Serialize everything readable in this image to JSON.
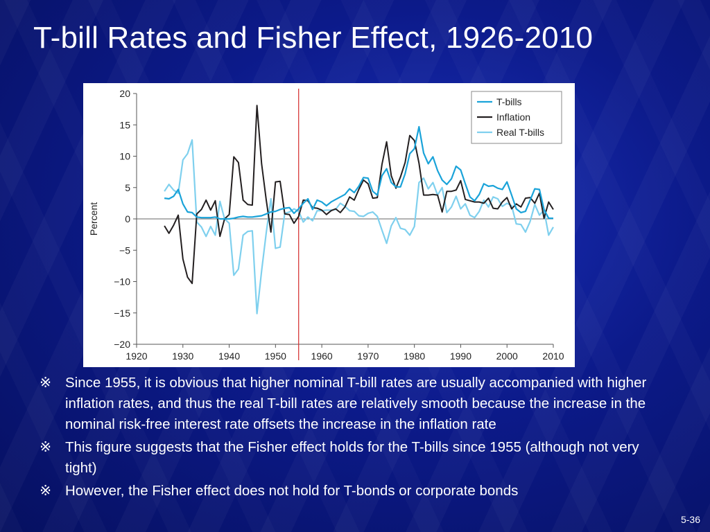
{
  "slide": {
    "title": "T-bill Rates and Fisher Effect, 1926-2010",
    "slide_number": "5-36",
    "bullet_marker": "※",
    "bullets": [
      "Since 1955, it is obvious that higher nominal T-bill rates are usually accompanied with higher inflation rates, and thus the real T-bill rates are relatively smooth because the increase in the nominal risk-free interest rate offsets the increase in the inflation rate",
      "This figure suggests that the Fisher effect holds for the T-bills since 1955 (although not very tight)",
      "However, the Fisher effect does not hold for T-bonds or corporate bonds"
    ],
    "colors": {
      "background": "#0c1a8a",
      "tbills": "#1aa3d9",
      "inflation": "#231f20",
      "real_tbills": "#7fd0ee",
      "marker_line": "#d42a2a"
    }
  },
  "chart_data": {
    "type": "line",
    "title": "",
    "xlabel": "",
    "ylabel": "Percent",
    "xlim": [
      1920,
      2010
    ],
    "ylim": [
      -20,
      20
    ],
    "xticks": [
      1920,
      1930,
      1940,
      1950,
      1960,
      1970,
      1980,
      1990,
      2000,
      2010
    ],
    "yticks": [
      -20,
      -15,
      -10,
      -5,
      0,
      5,
      10,
      15,
      20
    ],
    "ytick_labels": [
      "−20",
      "−15",
      "−10",
      "−5",
      "0",
      "5",
      "10",
      "15",
      "20"
    ],
    "reference_line_x": 1955,
    "legend_position": "top-right",
    "x": [
      1926,
      1927,
      1928,
      1929,
      1930,
      1931,
      1932,
      1933,
      1934,
      1935,
      1936,
      1937,
      1938,
      1939,
      1940,
      1941,
      1942,
      1943,
      1944,
      1945,
      1946,
      1947,
      1948,
      1949,
      1950,
      1951,
      1952,
      1953,
      1954,
      1955,
      1956,
      1957,
      1958,
      1959,
      1960,
      1961,
      1962,
      1963,
      1964,
      1965,
      1966,
      1967,
      1968,
      1969,
      1970,
      1971,
      1972,
      1973,
      1974,
      1975,
      1976,
      1977,
      1978,
      1979,
      1980,
      1981,
      1982,
      1983,
      1984,
      1985,
      1986,
      1987,
      1988,
      1989,
      1990,
      1991,
      1992,
      1993,
      1994,
      1995,
      1996,
      1997,
      1998,
      1999,
      2000,
      2001,
      2002,
      2003,
      2004,
      2005,
      2006,
      2007,
      2008,
      2009,
      2010
    ],
    "series": [
      {
        "name": "T-bills",
        "values": [
          3.3,
          3.2,
          3.6,
          4.7,
          2.4,
          1.1,
          1.0,
          0.3,
          0.2,
          0.2,
          0.2,
          0.3,
          0.0,
          0.0,
          0.0,
          0.1,
          0.3,
          0.4,
          0.3,
          0.3,
          0.4,
          0.5,
          0.8,
          1.1,
          1.2,
          1.5,
          1.7,
          1.8,
          0.9,
          1.6,
          2.5,
          3.2,
          1.5,
          3.0,
          2.7,
          2.1,
          2.7,
          3.1,
          3.5,
          3.9,
          4.8,
          4.2,
          5.2,
          6.6,
          6.5,
          4.4,
          3.8,
          6.9,
          8.0,
          5.8,
          5.1,
          5.1,
          7.2,
          10.4,
          11.2,
          14.7,
          10.5,
          8.8,
          9.9,
          7.7,
          6.2,
          5.5,
          6.4,
          8.4,
          7.8,
          5.6,
          3.5,
          2.9,
          3.9,
          5.6,
          5.2,
          5.3,
          4.9,
          4.7,
          5.9,
          3.8,
          1.6,
          1.0,
          1.2,
          3.0,
          4.8,
          4.7,
          1.5,
          0.1,
          0.1
        ]
      },
      {
        "name": "Inflation",
        "values": [
          -1.1,
          -2.3,
          -1.0,
          0.6,
          -6.4,
          -9.3,
          -10.3,
          0.8,
          1.5,
          3.0,
          1.4,
          2.9,
          -2.8,
          0.0,
          0.7,
          9.9,
          9.0,
          3.0,
          2.3,
          2.2,
          18.1,
          8.8,
          3.0,
          -2.1,
          5.9,
          6.0,
          0.8,
          0.7,
          -0.7,
          0.4,
          3.0,
          2.9,
          1.8,
          1.7,
          1.4,
          0.7,
          1.3,
          1.6,
          1.0,
          1.9,
          3.5,
          3.0,
          4.7,
          6.2,
          5.6,
          3.3,
          3.4,
          8.7,
          12.3,
          6.9,
          4.9,
          6.7,
          9.0,
          13.3,
          12.5,
          8.9,
          3.8,
          3.8,
          3.9,
          3.8,
          1.1,
          4.4,
          4.4,
          4.6,
          6.1,
          3.1,
          2.9,
          2.7,
          2.7,
          2.5,
          3.3,
          1.7,
          1.6,
          2.7,
          3.4,
          1.6,
          2.4,
          1.9,
          3.3,
          3.4,
          2.5,
          4.1,
          0.1,
          2.7,
          1.5
        ]
      },
      {
        "name": "Real T-bills",
        "values": [
          4.4,
          5.5,
          4.6,
          4.1,
          9.4,
          10.4,
          12.6,
          -0.5,
          -1.3,
          -2.8,
          -1.2,
          -2.6,
          2.8,
          0.0,
          -0.7,
          -9.0,
          -8.0,
          -2.6,
          -2.0,
          -1.9,
          -15.1,
          -8.3,
          -2.2,
          3.2,
          -4.7,
          -4.5,
          0.9,
          1.1,
          1.6,
          1.2,
          -0.5,
          0.3,
          -0.3,
          1.3,
          1.3,
          1.4,
          1.4,
          1.5,
          2.5,
          2.0,
          1.3,
          1.2,
          0.5,
          0.4,
          0.9,
          1.1,
          0.4,
          -1.8,
          -3.9,
          -1.1,
          0.2,
          -1.5,
          -1.7,
          -2.6,
          -1.2,
          5.8,
          6.5,
          4.8,
          5.8,
          3.8,
          5.0,
          1.0,
          1.9,
          3.6,
          1.6,
          2.4,
          0.6,
          0.2,
          1.2,
          3.0,
          1.9,
          3.5,
          3.2,
          2.0,
          2.5,
          2.1,
          -0.8,
          -0.9,
          -2.1,
          -0.4,
          2.3,
          0.6,
          1.4,
          -2.6,
          -1.3
        ]
      }
    ]
  }
}
